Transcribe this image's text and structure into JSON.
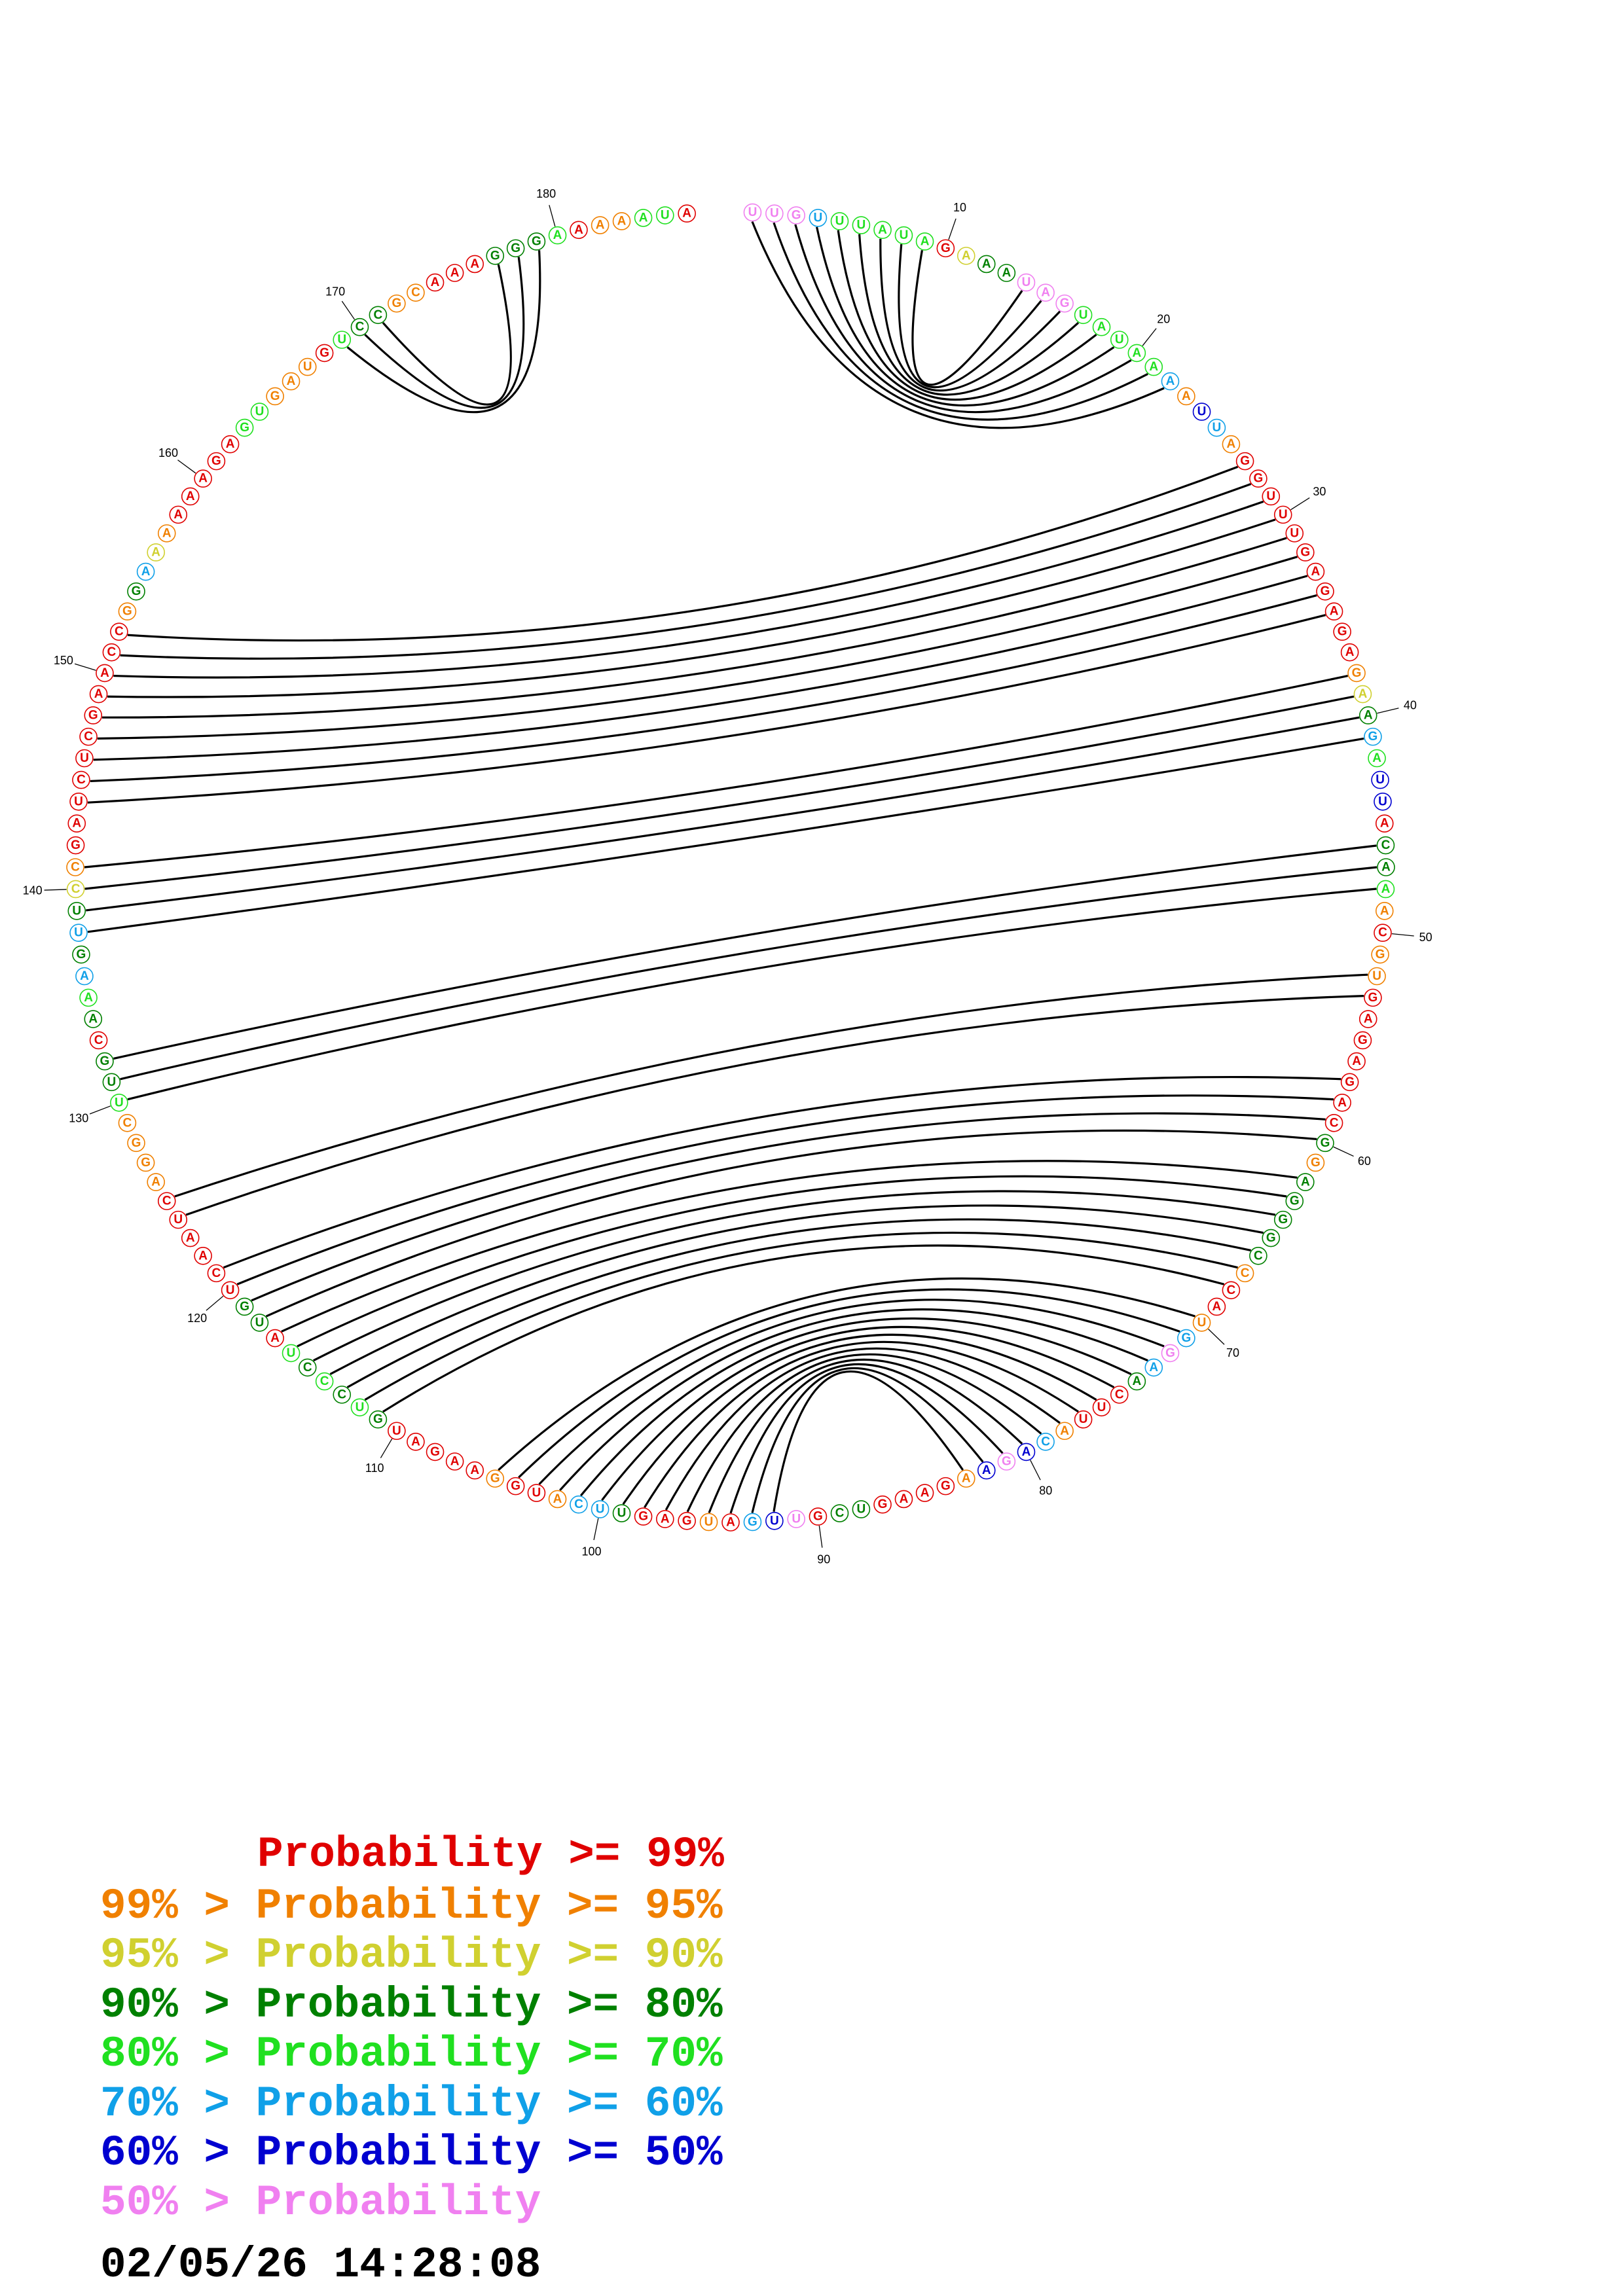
{
  "title": null,
  "bases": [
    "U",
    "U",
    "G",
    "U",
    "U",
    "U",
    "A",
    "U",
    "A",
    "G",
    "A",
    "A",
    "A",
    "U",
    "A",
    "G",
    "U",
    "A",
    "U",
    "A",
    "A",
    "A",
    "A",
    "U",
    "U",
    "A",
    "G",
    "G",
    "U",
    "U",
    "U",
    "G",
    "A",
    "G",
    "A",
    "G",
    "A",
    "G",
    "A",
    "A",
    "G",
    "A",
    "U",
    "U",
    "A",
    "C",
    "A",
    "A",
    "A",
    "C",
    "G",
    "U",
    "G",
    "A",
    "G",
    "A",
    "G",
    "A",
    "C",
    "G",
    "G",
    "A",
    "G",
    "G",
    "G",
    "C",
    "C",
    "C",
    "A",
    "U",
    "G",
    "G",
    "A",
    "A",
    "C",
    "U",
    "U",
    "A",
    "C",
    "A",
    "G",
    "A",
    "A",
    "G",
    "A",
    "A",
    "G",
    "U",
    "C",
    "G",
    "U",
    "U",
    "G",
    "A",
    "U",
    "G",
    "A",
    "G",
    "U",
    "U",
    "C",
    "A",
    "U",
    "G",
    "G",
    "A",
    "A",
    "G",
    "A",
    "U",
    "G",
    "U",
    "C",
    "C",
    "C",
    "U",
    "A",
    "U",
    "G",
    "U",
    "C",
    "A",
    "A",
    "U",
    "C",
    "A",
    "G",
    "G",
    "C",
    "U",
    "U",
    "G",
    "C",
    "A",
    "A",
    "A",
    "G",
    "U",
    "U",
    "C",
    "C",
    "G",
    "A",
    "U",
    "C",
    "U",
    "C",
    "G",
    "A",
    "A",
    "C",
    "C",
    "G",
    "G",
    "A",
    "A",
    "A",
    "A",
    "A",
    "A",
    "G",
    "A",
    "G",
    "U",
    "G",
    "A",
    "U",
    "G",
    "U",
    "C",
    "C",
    "G",
    "C",
    "A",
    "A",
    "A",
    "G",
    "G",
    "G",
    "A",
    "A",
    "A",
    "A",
    "A",
    "U",
    "A"
  ],
  "colors": [
    "#f080f0",
    "#f080f0",
    "#f080f0",
    "#10a0e8",
    "#20e020",
    "#20e020",
    "#20e020",
    "#20e020",
    "#20e020",
    "#e00000",
    "#d0d030",
    "#008000",
    "#008000",
    "#f080f0",
    "#f080f0",
    "#f080f0",
    "#20e020",
    "#20e020",
    "#20e020",
    "#20e020",
    "#20e020",
    "#10a0e8",
    "#f08000",
    "#0000d0",
    "#10a0e8",
    "#f08000",
    "#e00000",
    "#e00000",
    "#e00000",
    "#e00000",
    "#e00000",
    "#e00000",
    "#e00000",
    "#e00000",
    "#e00000",
    "#e00000",
    "#e00000",
    "#f08000",
    "#d0d030",
    "#008000",
    "#10a0e8",
    "#20e020",
    "#0000d0",
    "#0000d0",
    "#e00000",
    "#008000",
    "#008000",
    "#20e020",
    "#f08000",
    "#e00000",
    "#f08000",
    "#f08000",
    "#e00000",
    "#e00000",
    "#e00000",
    "#e00000",
    "#e00000",
    "#e00000",
    "#e00000",
    "#008000",
    "#f08000",
    "#008000",
    "#008000",
    "#008000",
    "#008000",
    "#008000",
    "#f08000",
    "#e00000",
    "#e00000",
    "#f08000",
    "#10a0e8",
    "#f080f0",
    "#10a0e8",
    "#008000",
    "#e00000",
    "#e00000",
    "#e00000",
    "#f08000",
    "#10a0e8",
    "#0000d0",
    "#f080f0",
    "#0000d0",
    "#f08000",
    "#e00000",
    "#e00000",
    "#e00000",
    "#e00000",
    "#008000",
    "#008000",
    "#e00000",
    "#f080f0",
    "#0000d0",
    "#10a0e8",
    "#e00000",
    "#f08000",
    "#e00000",
    "#e00000",
    "#e00000",
    "#008000",
    "#10a0e8",
    "#10a0e8",
    "#f08000",
    "#e00000",
    "#e00000",
    "#f08000",
    "#e00000",
    "#e00000",
    "#e00000",
    "#e00000",
    "#e00000",
    "#008000",
    "#20e020",
    "#008000",
    "#20e020",
    "#008000",
    "#20e020",
    "#e00000",
    "#008000",
    "#008000",
    "#e00000",
    "#e00000",
    "#e00000",
    "#e00000",
    "#e00000",
    "#e00000",
    "#f08000",
    "#f08000",
    "#f08000",
    "#f08000",
    "#20e020",
    "#008000",
    "#008000",
    "#e00000",
    "#008000",
    "#20e020",
    "#10a0e8",
    "#008000",
    "#10a0e8",
    "#008000",
    "#d0d030",
    "#f08000",
    "#e00000",
    "#e00000",
    "#e00000",
    "#e00000",
    "#e00000",
    "#e00000",
    "#e00000",
    "#e00000",
    "#e00000",
    "#e00000",
    "#e00000",
    "#f08000",
    "#008000",
    "#10a0e8",
    "#d0d030",
    "#f08000",
    "#e00000",
    "#e00000",
    "#e00000",
    "#e00000",
    "#e00000",
    "#20e020",
    "#20e020",
    "#f08000",
    "#f08000",
    "#f08000",
    "#e00000",
    "#20e020",
    "#008000",
    "#008000",
    "#f08000",
    "#f08000",
    "#e00000",
    "#e00000",
    "#e00000",
    "#008000",
    "#008000",
    "#008000",
    "#20e020",
    "#e00000",
    "#f08000",
    "#f08000",
    "#20e020",
    "#20e020",
    "#e00000"
  ],
  "position_labels": [
    10,
    20,
    30,
    40,
    50,
    60,
    70,
    80,
    90,
    100,
    110,
    120,
    130,
    140,
    150,
    160,
    170,
    180
  ],
  "pairs": [
    [
      1,
      22
    ],
    [
      2,
      21
    ],
    [
      3,
      20
    ],
    [
      4,
      19
    ],
    [
      5,
      18
    ],
    [
      6,
      17
    ],
    [
      7,
      16
    ],
    [
      8,
      15
    ],
    [
      9,
      14
    ],
    [
      169,
      179
    ],
    [
      170,
      178
    ],
    [
      171,
      177
    ],
    [
      27,
      152
    ],
    [
      28,
      151
    ],
    [
      29,
      150
    ],
    [
      30,
      149
    ],
    [
      31,
      148
    ],
    [
      32,
      147
    ],
    [
      33,
      146
    ],
    [
      34,
      145
    ],
    [
      35,
      144
    ],
    [
      38,
      141
    ],
    [
      39,
      140
    ],
    [
      40,
      139
    ],
    [
      41,
      138
    ],
    [
      46,
      132
    ],
    [
      47,
      131
    ],
    [
      48,
      130
    ],
    [
      52,
      125
    ],
    [
      53,
      124
    ],
    [
      57,
      121
    ],
    [
      58,
      120
    ],
    [
      59,
      119
    ],
    [
      60,
      118
    ],
    [
      62,
      117
    ],
    [
      63,
      116
    ],
    [
      64,
      115
    ],
    [
      65,
      114
    ],
    [
      66,
      113
    ],
    [
      67,
      112
    ],
    [
      68,
      111
    ],
    [
      70,
      105
    ],
    [
      71,
      104
    ],
    [
      72,
      103
    ],
    [
      73,
      102
    ],
    [
      74,
      101
    ],
    [
      75,
      100
    ],
    [
      76,
      99
    ],
    [
      77,
      98
    ],
    [
      78,
      97
    ],
    [
      79,
      96
    ],
    [
      80,
      95
    ],
    [
      81,
      94
    ],
    [
      82,
      93
    ],
    [
      83,
      92
    ]
  ],
  "legend": [
    {
      "text": "Probability >= 99%",
      "color": "#e00000"
    },
    {
      "text": "99% > Probability >= 95%",
      "color": "#f08000"
    },
    {
      "text": "95% > Probability >= 90%",
      "color": "#d0d030"
    },
    {
      "text": "90% > Probability >= 80%",
      "color": "#008000"
    },
    {
      "text": "80% > Probability >= 70%",
      "color": "#20e020"
    },
    {
      "text": "70% > Probability >= 60%",
      "color": "#10a0e8"
    },
    {
      "text": "60% > Probability >= 50%",
      "color": "#0000d0"
    },
    {
      "text": "50% > Probability",
      "color": "#f080f0"
    }
  ],
  "timestamp": "02/05/26 14:28:08"
}
